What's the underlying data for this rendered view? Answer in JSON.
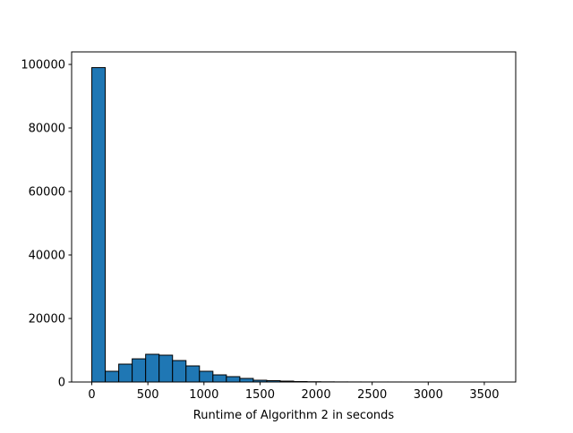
{
  "chart_data": {
    "type": "histogram",
    "x_label": "Runtime of Algorithm 2 in seconds",
    "bins": [
      0,
      120,
      240,
      360,
      480,
      600,
      720,
      840,
      960,
      1080,
      1200,
      1320,
      1440,
      1560,
      1680,
      1800,
      1920,
      2040,
      2160,
      2280,
      2400,
      2520,
      2640,
      2760,
      2880,
      3000,
      3120,
      3240,
      3360,
      3480,
      3600
    ],
    "values": [
      99000,
      3380,
      5630,
      7300,
      8730,
      8450,
      6760,
      5070,
      3380,
      2250,
      1690,
      1130,
      560,
      420,
      280,
      150,
      80,
      50,
      30,
      20,
      15,
      10,
      8,
      5,
      4,
      3,
      2,
      2,
      1,
      1
    ],
    "color": "#1f77b4",
    "edgecolor": "#000000",
    "xlim": [
      -180,
      3780
    ],
    "ylim": [
      0,
      103950
    ],
    "xticks": [
      0,
      500,
      1000,
      1500,
      2000,
      2500,
      3000,
      3500
    ],
    "yticks": [
      0,
      20000,
      40000,
      60000,
      80000,
      100000
    ]
  }
}
